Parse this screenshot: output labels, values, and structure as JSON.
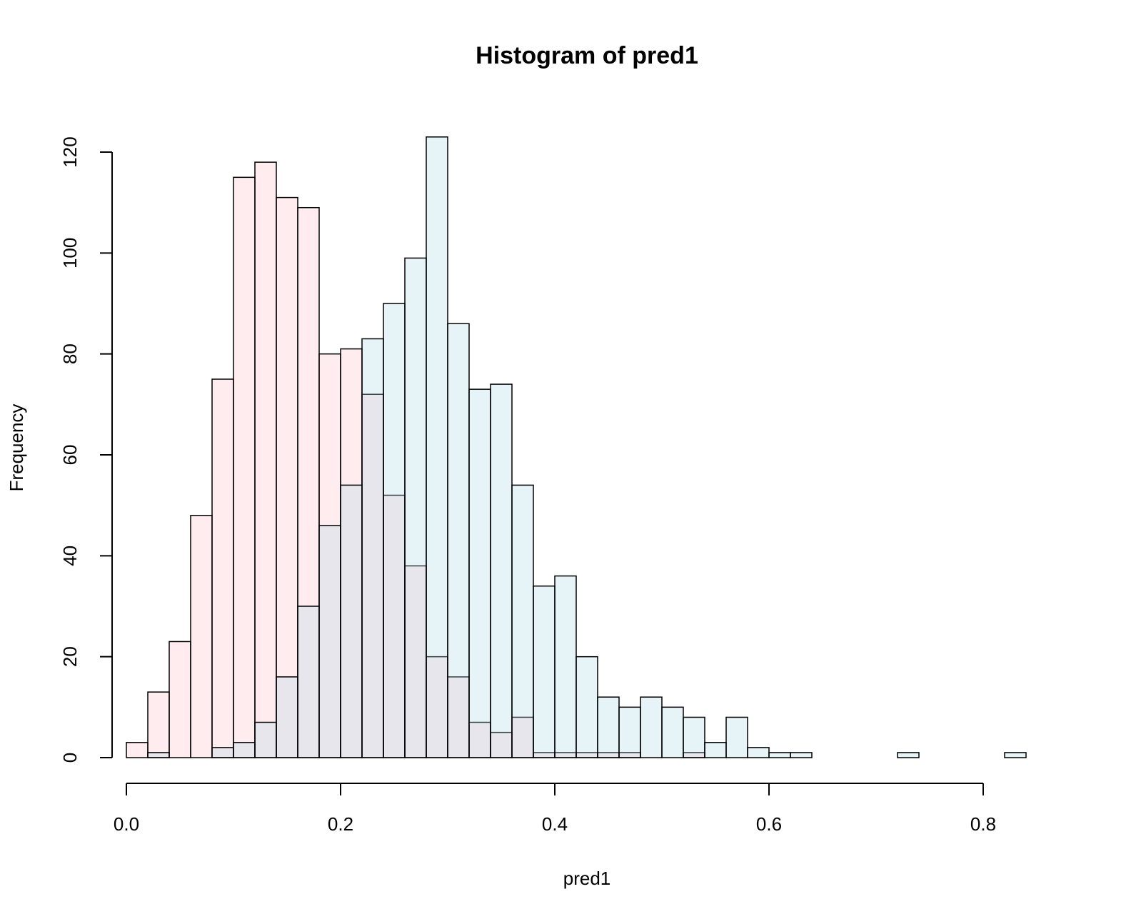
{
  "chart_data": {
    "type": "histogram",
    "title": "Histogram of pred1",
    "x_label": "pred1",
    "y_label": "Frequency",
    "bins": [
      0,
      0.02,
      0.04,
      0.06,
      0.08,
      0.1,
      0.12,
      0.14,
      0.16,
      0.18,
      0.2,
      0.22,
      0.24,
      0.26,
      0.28,
      0.3,
      0.32,
      0.34,
      0.36,
      0.38,
      0.4,
      0.42,
      0.44,
      0.46,
      0.48,
      0.5,
      0.52,
      0.54,
      0.56,
      0.58,
      0.6,
      0.62,
      0.64,
      0.66,
      0.68,
      0.7,
      0.72,
      0.74,
      0.76,
      0.78,
      0.8,
      0.82,
      0.84
    ],
    "series": [
      {
        "color": "#ffc0cb",
        "alpha": 0.3,
        "values": [
          3,
          13,
          23,
          48,
          75,
          115,
          118,
          111,
          109,
          80,
          81,
          72,
          52,
          38,
          20,
          16,
          7,
          5,
          8,
          1,
          1,
          1,
          1,
          1,
          0,
          0,
          1,
          0,
          0,
          0,
          0,
          0,
          0,
          0,
          0,
          0,
          0,
          0,
          0,
          0,
          0,
          0
        ]
      },
      {
        "color": "#add8e6",
        "alpha": 0.3,
        "values": [
          0,
          1,
          0,
          0,
          2,
          3,
          7,
          16,
          30,
          46,
          54,
          83,
          90,
          99,
          123,
          86,
          73,
          74,
          54,
          34,
          36,
          20,
          12,
          10,
          12,
          10,
          8,
          3,
          8,
          2,
          1,
          1,
          0,
          0,
          0,
          0,
          1,
          0,
          0,
          0,
          0,
          1
        ]
      }
    ],
    "xlim": [
      0,
      0.84
    ],
    "xticks": [
      {
        "value": 0,
        "label": "0.0"
      },
      0.2,
      0.4,
      0.6,
      0.8
    ],
    "ylim": [
      0,
      120
    ],
    "yticks": [
      0,
      20,
      40,
      60,
      80,
      100,
      120
    ]
  }
}
